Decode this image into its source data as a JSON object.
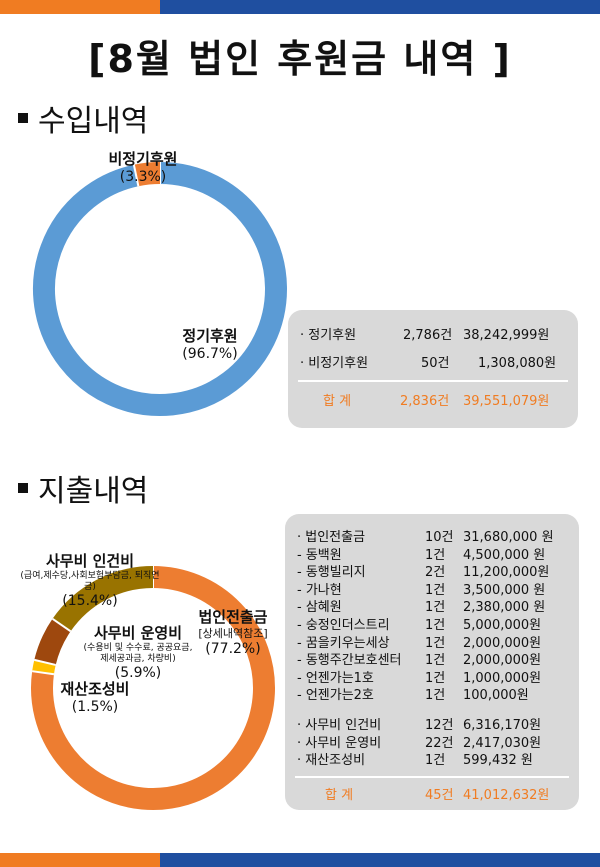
{
  "page": {
    "title": "[8월 법인 후원금 내역 ]"
  },
  "income": {
    "section_title": "수입내역",
    "table": {
      "rows": [
        {
          "name": "· 정기후원",
          "count": "2,786건",
          "amount": "38,242,999원"
        },
        {
          "name": "· 비정기후원",
          "count": "50건",
          "amount": "1,308,080원"
        }
      ],
      "total": {
        "name": "합   계",
        "count": "2,836건",
        "amount": "39,551,079원"
      }
    }
  },
  "expense": {
    "section_title": "지출내역",
    "table": {
      "rows": [
        {
          "name": "· 법인전출금",
          "count": "10건",
          "amount": "31,680,000 원"
        },
        {
          "name": "-    동백원",
          "count": "1건",
          "amount": "4,500,000 원"
        },
        {
          "name": "-    동행빌리지",
          "count": "2건",
          "amount": "11,200,000원"
        },
        {
          "name": "-    가나현",
          "count": "1건",
          "amount": "3,500,000 원"
        },
        {
          "name": "-    삼혜원",
          "count": "1건",
          "amount": "2,380,000 원"
        },
        {
          "name": "-    숭정인더스트리",
          "count": "1건",
          "amount": "5,000,000원"
        },
        {
          "name": "-    꿈을키우는세상",
          "count": "1건",
          "amount": "2,000,000원"
        },
        {
          "name": "-    동행주간보호센터",
          "count": "1건",
          "amount": "2,000,000원"
        },
        {
          "name": "-    언젠가는1호",
          "count": "1건",
          "amount": "1,000,000원"
        },
        {
          "name": "-    언젠가는2호",
          "count": "1건",
          "amount": "100,000원"
        }
      ],
      "rows2": [
        {
          "name": "· 사무비 인건비",
          "count": "12건",
          "amount": "6,316,170원"
        },
        {
          "name": "· 사무비 운영비",
          "count": "22건",
          "amount": "2,417,030원"
        },
        {
          "name": "· 재산조성비",
          "count": "1건",
          "amount": "599,432 원"
        }
      ],
      "total": {
        "name": "합   계",
        "count": "45건",
        "amount": "41,012,632원"
      }
    }
  },
  "chart_data": [
    {
      "type": "pie",
      "donut": true,
      "series": [
        {
          "name": "정기후원",
          "value": 96.7,
          "label": "(96.7%)",
          "color": "#5b9bd5"
        },
        {
          "name": "비정기후원",
          "value": 3.3,
          "label": "(3.3%)",
          "color": "#ed7d31"
        }
      ]
    },
    {
      "type": "pie",
      "donut": true,
      "series": [
        {
          "name": "법인전출금",
          "value": 77.2,
          "label": "(77.2%)",
          "sub": "[상세내역참조]",
          "color": "#ed7d31"
        },
        {
          "name": "재산조성비",
          "value": 1.5,
          "label": "(1.5%)",
          "color": "#ffc000"
        },
        {
          "name": "사무비 운영비",
          "value": 5.9,
          "label": "(5.9%)",
          "sub": "(수용비 및 수수료, 공공요금, 제세공과금, 차량비)",
          "color": "#9e480e"
        },
        {
          "name": "사무비 인건비",
          "value": 15.4,
          "label": "(15.4%)",
          "sub": "(급여,제수당,사회보험부담금, 퇴직연금)",
          "color": "#997300"
        }
      ]
    }
  ]
}
